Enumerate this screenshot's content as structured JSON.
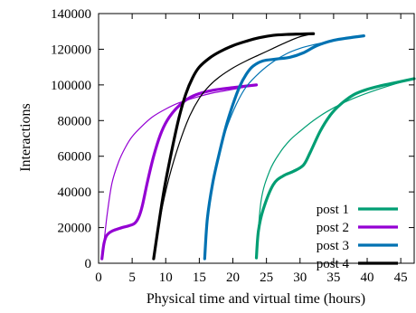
{
  "chart_data": {
    "type": "line",
    "title": "",
    "xlabel": "Physical time and virtual time (hours)",
    "ylabel": "Interactions",
    "xlim": [
      0,
      47
    ],
    "ylim": [
      0,
      140000
    ],
    "xticks": [
      0,
      5,
      10,
      15,
      20,
      25,
      30,
      35,
      40,
      45
    ],
    "yticks": [
      0,
      20000,
      40000,
      60000,
      80000,
      100000,
      120000,
      140000
    ],
    "grid": false,
    "legend_position": "bottom-right",
    "series": [
      {
        "name": "post 1",
        "color": "#009e73",
        "physical": [
          [
            23.5,
            3000
          ],
          [
            23.8,
            18000
          ],
          [
            24.5,
            30000
          ],
          [
            26,
            44000
          ],
          [
            27.5,
            49000
          ],
          [
            29,
            51500
          ],
          [
            30.5,
            55000
          ],
          [
            31.5,
            62000
          ],
          [
            33,
            74000
          ],
          [
            34.5,
            83000
          ],
          [
            36,
            89000
          ],
          [
            38,
            94500
          ],
          [
            40,
            97500
          ],
          [
            42,
            99500
          ],
          [
            44.5,
            101500
          ],
          [
            47,
            103500
          ]
        ],
        "virtual": [
          [
            23.5,
            3000
          ],
          [
            24.2,
            35000
          ],
          [
            25.5,
            52000
          ],
          [
            27,
            62000
          ],
          [
            28.5,
            69000
          ],
          [
            30,
            74000
          ],
          [
            32,
            80000
          ],
          [
            34,
            85000
          ],
          [
            36.5,
            90000
          ],
          [
            39,
            94000
          ],
          [
            42,
            98000
          ],
          [
            45,
            101500
          ],
          [
            47,
            103500
          ]
        ]
      },
      {
        "name": "post 2",
        "color": "#9400d3",
        "physical": [
          [
            0.5,
            2500
          ],
          [
            0.8,
            11000
          ],
          [
            1.2,
            15500
          ],
          [
            2,
            18000
          ],
          [
            3.5,
            20000
          ],
          [
            4.5,
            21000
          ],
          [
            5.4,
            22500
          ],
          [
            6,
            26000
          ],
          [
            6.5,
            32000
          ],
          [
            7.3,
            46000
          ],
          [
            8.2,
            60000
          ],
          [
            9.2,
            72000
          ],
          [
            10.2,
            80000
          ],
          [
            11.5,
            86500
          ],
          [
            13,
            91500
          ],
          [
            14.5,
            94500
          ],
          [
            17,
            97000
          ],
          [
            20,
            98500
          ],
          [
            23.5,
            100000
          ]
        ],
        "virtual": [
          [
            0.5,
            2500
          ],
          [
            0.9,
            15000
          ],
          [
            1.3,
            28000
          ],
          [
            2,
            45000
          ],
          [
            3,
            57000
          ],
          [
            4,
            65000
          ],
          [
            5,
            71000
          ],
          [
            6.5,
            77000
          ],
          [
            8,
            82000
          ],
          [
            10,
            86500
          ],
          [
            12,
            90000
          ],
          [
            14.5,
            93000
          ],
          [
            17,
            95500
          ],
          [
            20,
            97500
          ],
          [
            23.5,
            100000
          ]
        ]
      },
      {
        "name": "post 3",
        "color": "#0072b2",
        "physical": [
          [
            15.8,
            2500
          ],
          [
            16.2,
            25000
          ],
          [
            17,
            45000
          ],
          [
            18,
            62000
          ],
          [
            19,
            77000
          ],
          [
            20,
            89000
          ],
          [
            21,
            99000
          ],
          [
            22,
            106000
          ],
          [
            23,
            110500
          ],
          [
            24.5,
            113500
          ],
          [
            26.5,
            114500
          ],
          [
            28.5,
            115500
          ],
          [
            30.5,
            118000
          ],
          [
            32.5,
            122000
          ],
          [
            35,
            125000
          ],
          [
            37.5,
            126500
          ],
          [
            39.5,
            127500
          ]
        ],
        "virtual": [
          [
            15.8,
            2500
          ],
          [
            16.4,
            30000
          ],
          [
            17.5,
            55000
          ],
          [
            19,
            75000
          ],
          [
            20.5,
            89000
          ],
          [
            22,
            99000
          ],
          [
            24,
            107000
          ],
          [
            26,
            113000
          ],
          [
            28,
            117500
          ],
          [
            30,
            120500
          ],
          [
            32,
            122500
          ],
          [
            34.5,
            124500
          ],
          [
            37,
            126300
          ],
          [
            39.5,
            127500
          ]
        ]
      },
      {
        "name": "post 4",
        "color": "#000000",
        "physical": [
          [
            8.2,
            2500
          ],
          [
            8.8,
            18000
          ],
          [
            9.8,
            42000
          ],
          [
            11,
            65000
          ],
          [
            12,
            82000
          ],
          [
            13,
            95000
          ],
          [
            14,
            104000
          ],
          [
            15,
            110000
          ],
          [
            16.5,
            115000
          ],
          [
            18,
            118500
          ],
          [
            20,
            122000
          ],
          [
            22,
            124500
          ],
          [
            24,
            126500
          ],
          [
            26,
            127800
          ],
          [
            28,
            128300
          ],
          [
            30,
            128500
          ],
          [
            32,
            128700
          ]
        ],
        "virtual": [
          [
            8.2,
            2500
          ],
          [
            9.2,
            26000
          ],
          [
            10.5,
            48000
          ],
          [
            12,
            67000
          ],
          [
            13.5,
            82000
          ],
          [
            15,
            92500
          ],
          [
            16.5,
            99500
          ],
          [
            18,
            104500
          ],
          [
            20,
            109500
          ],
          [
            22,
            113500
          ],
          [
            24,
            117000
          ],
          [
            26,
            120500
          ],
          [
            28,
            124000
          ],
          [
            30,
            127000
          ],
          [
            32,
            128700
          ]
        ]
      }
    ]
  }
}
